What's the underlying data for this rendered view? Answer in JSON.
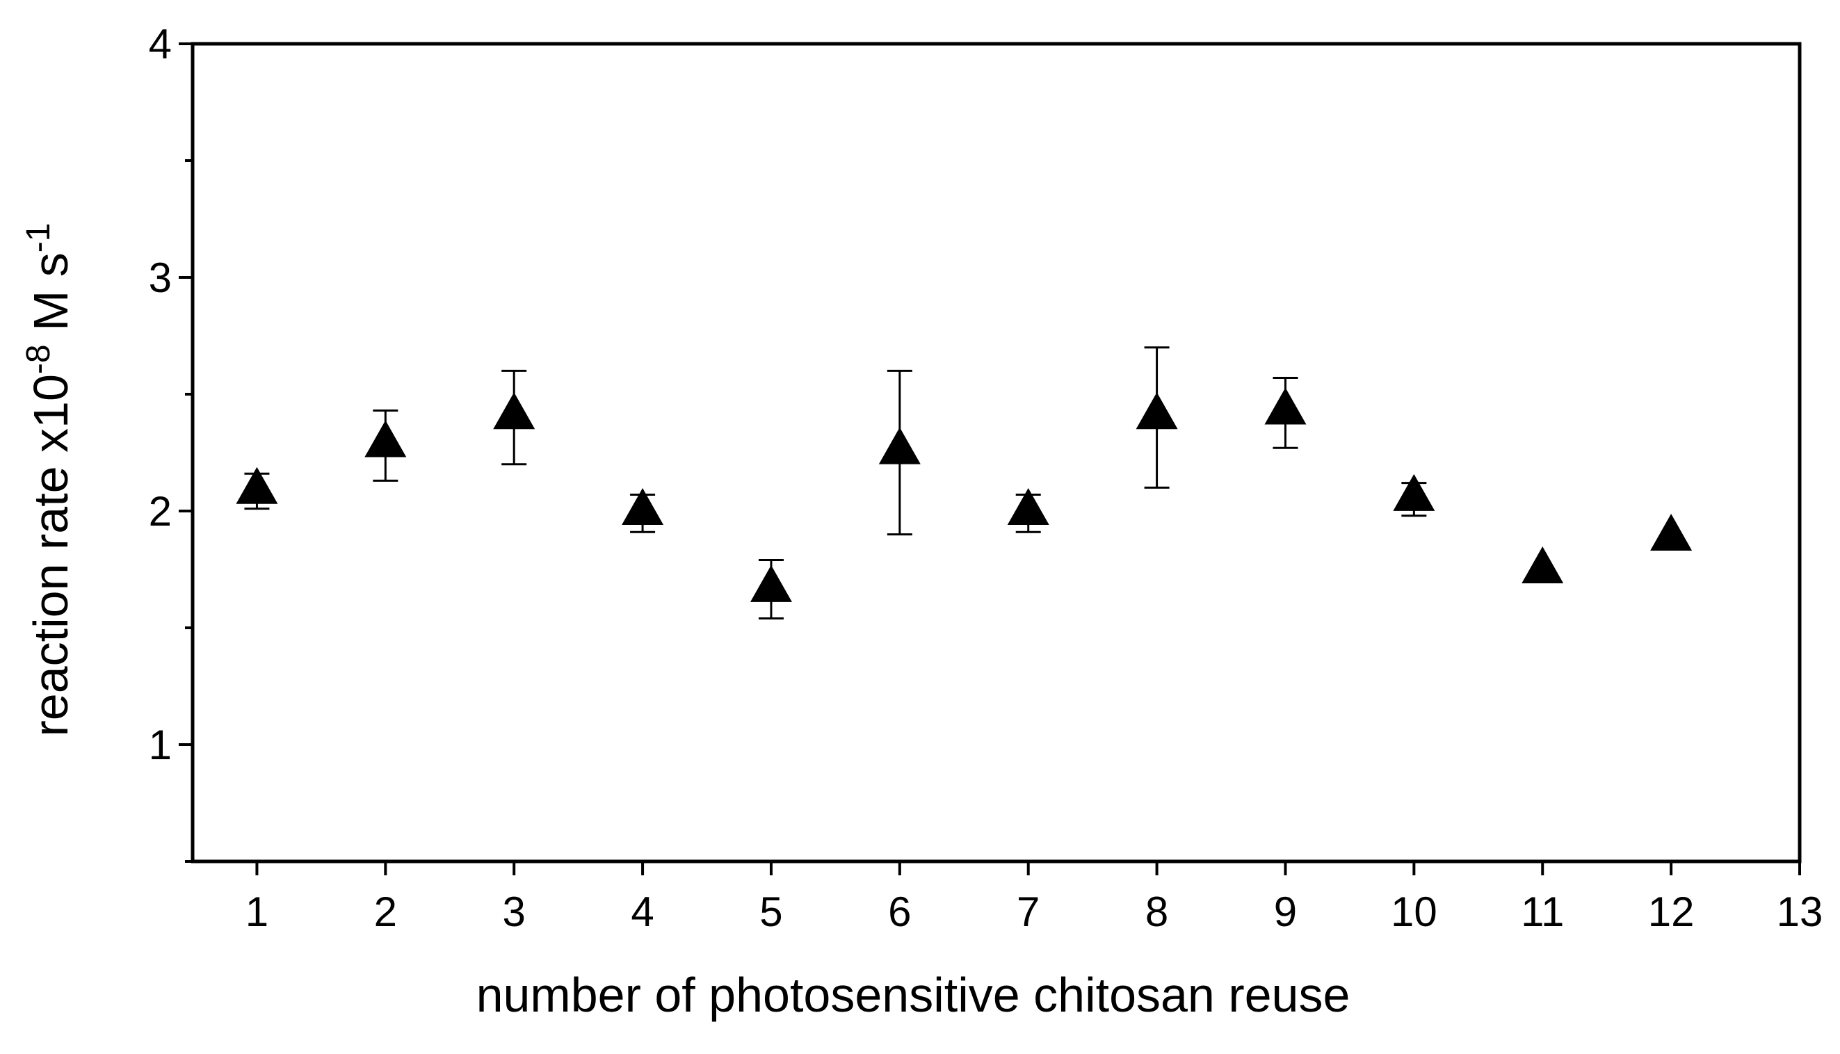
{
  "chart_data": {
    "type": "scatter",
    "xlabel": "number of photosensitive chitosan reuse",
    "ylabel": {
      "prefix": "reaction rate x10",
      "exp1": "-8",
      "middle": " M s",
      "exp2": "-1"
    },
    "xlim": [
      0.5,
      13
    ],
    "ylim": [
      0.5,
      4
    ],
    "x_ticks": [
      1,
      2,
      3,
      4,
      5,
      6,
      7,
      8,
      9,
      10,
      11,
      12,
      13
    ],
    "y_ticks": [
      1,
      2,
      3,
      4
    ],
    "y_minor_step": 0.1,
    "grid": false,
    "legend": "none",
    "marker": "filled-triangle",
    "marker_color": "#000000",
    "series": [
      {
        "x": [
          1,
          2,
          3,
          4,
          5,
          6,
          7,
          8,
          9,
          10,
          11,
          12
        ],
        "y": [
          2.09,
          2.29,
          2.41,
          2.0,
          1.67,
          2.26,
          2.0,
          2.41,
          2.43,
          2.06,
          1.75,
          1.89
        ],
        "err_low": [
          2.01,
          2.13,
          2.2,
          1.91,
          1.54,
          1.9,
          1.91,
          2.1,
          2.27,
          1.98,
          null,
          null
        ],
        "err_high": [
          2.16,
          2.43,
          2.6,
          2.07,
          1.79,
          2.6,
          2.07,
          2.7,
          2.57,
          2.12,
          null,
          null
        ]
      }
    ]
  }
}
